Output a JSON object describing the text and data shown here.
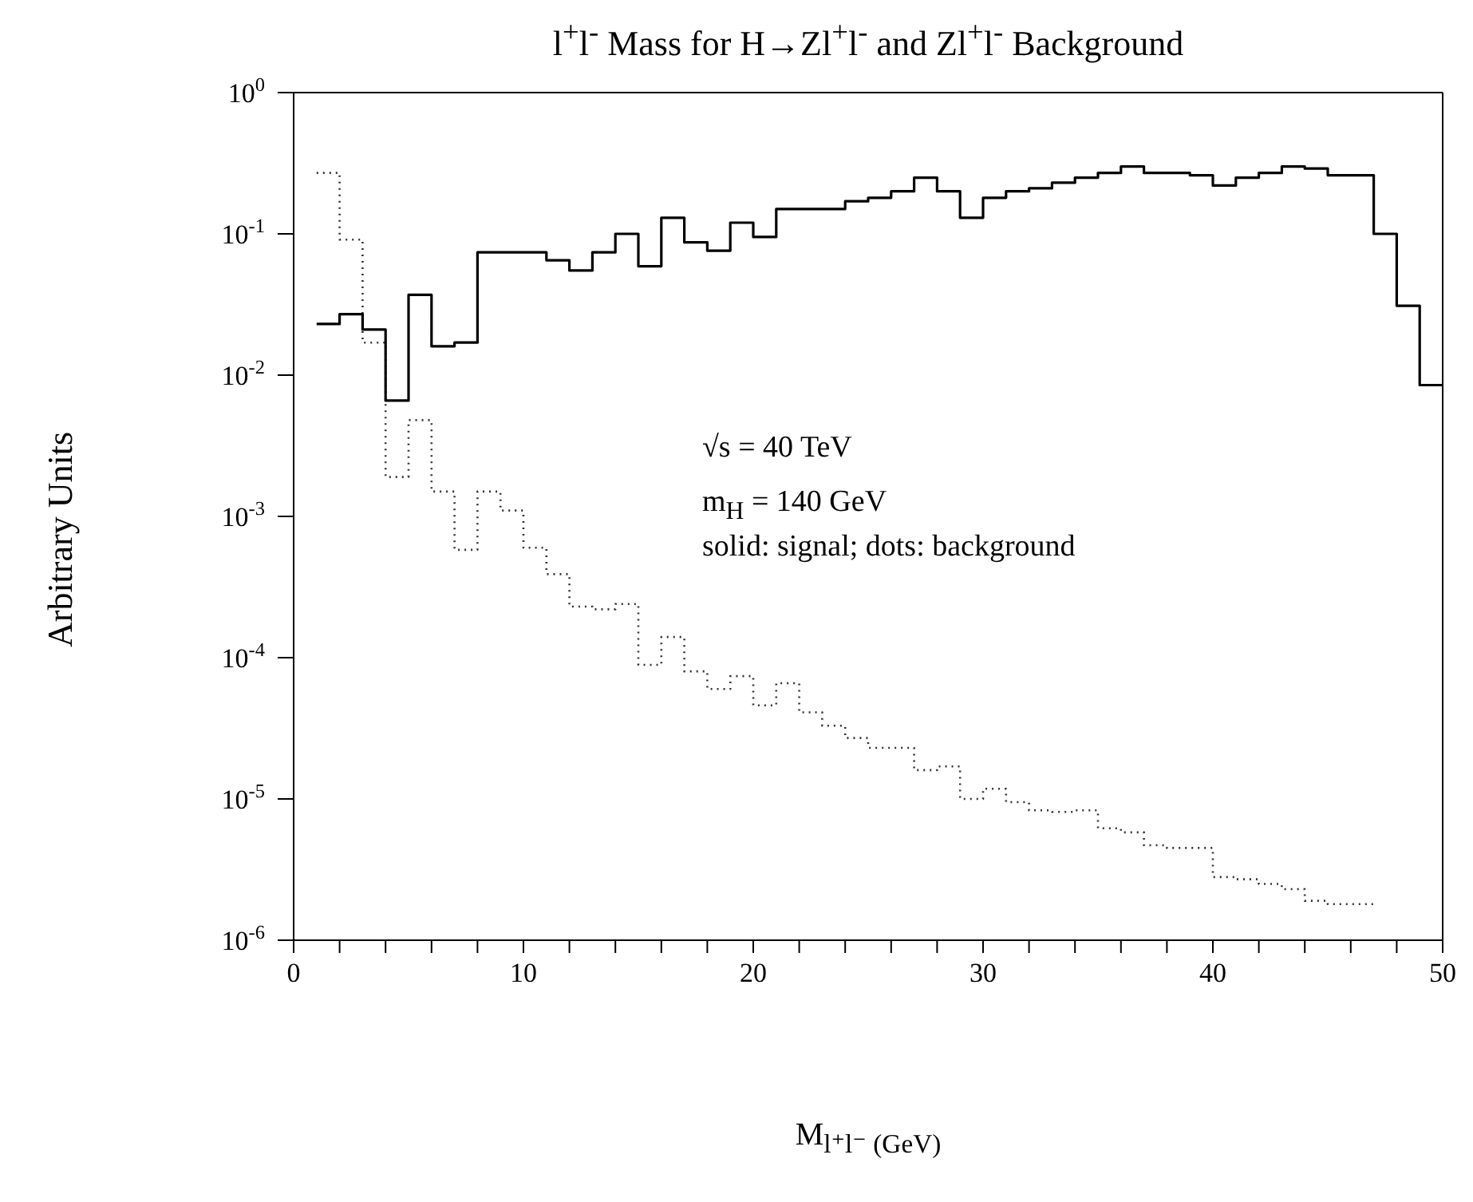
{
  "chart_data": {
    "type": "histogram",
    "title": "l$^{+}$l$^{-}$ Mass for H→Zl$^{+}$l$^{-}$ and Zl$^{+}$l$^{-}$ Background",
    "xlabel": "M$_{l⁺l⁻ (GeV)}$",
    "ylabel": "Arbitrary Units",
    "annotations": [
      "√s = 40 TeV",
      "m$_{H}$ = 140 GeV",
      "solid: signal; dots: background"
    ],
    "bins": [
      1,
      2,
      3,
      4,
      5,
      6,
      7,
      8,
      9,
      10,
      11,
      12,
      13,
      14,
      15,
      16,
      17,
      18,
      19,
      20,
      21,
      22,
      23,
      24,
      25,
      26,
      27,
      28,
      29,
      30,
      31,
      32,
      33,
      34,
      35,
      36,
      37,
      38,
      39,
      40,
      41,
      42,
      43,
      44,
      45,
      46,
      47,
      48,
      49,
      50
    ],
    "series": [
      {
        "color": "#000000",
        "line_style": "solid",
        "values": [
          0.023,
          0.027,
          0.021,
          0.0066,
          0.037,
          0.016,
          0.017,
          0.074,
          0.074,
          0.074,
          0.065,
          0.055,
          0.074,
          0.1,
          0.059,
          0.13,
          0.087,
          0.076,
          0.12,
          0.095,
          0.15,
          0.15,
          0.15,
          0.17,
          0.18,
          0.2,
          0.25,
          0.2,
          0.13,
          0.18,
          0.2,
          0.21,
          0.23,
          0.25,
          0.27,
          0.3,
          0.27,
          0.27,
          0.26,
          0.22,
          0.25,
          0.27,
          0.3,
          0.29,
          0.26,
          0.26,
          0.1,
          0.031,
          0.0085
        ]
      },
      {
        "color": "#333333",
        "line_style": "dotted",
        "bins": [
          1,
          2,
          3,
          4,
          5,
          6,
          7,
          8,
          9,
          10,
          11,
          12,
          13,
          14,
          15,
          16,
          17,
          18,
          19,
          20,
          21,
          22,
          23,
          24,
          25,
          26,
          27,
          28,
          29,
          30,
          31,
          32,
          33,
          34,
          35,
          36,
          37,
          38,
          39,
          40,
          41,
          42,
          43,
          44,
          45,
          46,
          47
        ],
        "values": [
          0.27,
          0.091,
          0.017,
          0.0019,
          0.0048,
          0.0015,
          0.00058,
          0.0015,
          0.0011,
          0.0006,
          0.00039,
          0.00023,
          0.00022,
          0.00024,
          8.9e-05,
          0.00014,
          8e-05,
          6e-05,
          7.4e-05,
          4.6e-05,
          6.6e-05,
          4.1e-05,
          3.3e-05,
          2.7e-05,
          2.3e-05,
          2.3e-05,
          1.6e-05,
          1.7e-05,
          1e-05,
          1.18e-05,
          9.5e-06,
          8.3e-06,
          8.1e-06,
          8.3e-06,
          6.2e-06,
          5.8e-06,
          4.7e-06,
          4.5e-06,
          4.5e-06,
          2.8e-06,
          2.7e-06,
          2.5e-06,
          2.3e-06,
          1.9e-06,
          1.8e-06,
          1.8e-06
        ]
      }
    ],
    "xlim": [
      0,
      50
    ],
    "xticks": [
      0,
      {
        "value": 2,
        "label": null
      },
      {
        "value": 4,
        "label": null
      },
      {
        "value": 6,
        "label": null
      },
      {
        "value": 8,
        "label": null
      },
      10,
      {
        "value": 12,
        "label": null
      },
      {
        "value": 14,
        "label": null
      },
      {
        "value": 16,
        "label": null
      },
      {
        "value": 18,
        "label": null
      },
      20,
      {
        "value": 22,
        "label": null
      },
      {
        "value": 24,
        "label": null
      },
      {
        "value": 26,
        "label": null
      },
      {
        "value": 28,
        "label": null
      },
      30,
      {
        "value": 32,
        "label": null
      },
      {
        "value": 34,
        "label": null
      },
      {
        "value": 36,
        "label": null
      },
      {
        "value": 38,
        "label": null
      },
      40,
      {
        "value": 42,
        "label": null
      },
      {
        "value": 44,
        "label": null
      },
      {
        "value": 46,
        "label": null
      },
      {
        "value": 48,
        "label": null
      },
      50
    ],
    "ylim": [
      1e-06,
      1
    ],
    "yticks": [
      {
        "value": 1e-06,
        "label": "10$^{-6}$"
      },
      {
        "value": 1e-05,
        "label": "10$^{-5}$"
      },
      {
        "value": 0.0001,
        "label": "10$^{-4}$"
      },
      {
        "value": 0.001,
        "label": "10$^{-3}$"
      },
      {
        "value": 0.01,
        "label": "10$^{-2}$"
      },
      {
        "value": 0.1,
        "label": "10$^{-1}$"
      },
      {
        "value": 1,
        "label": "10$^{0}$"
      }
    ],
    "log": "y"
  }
}
